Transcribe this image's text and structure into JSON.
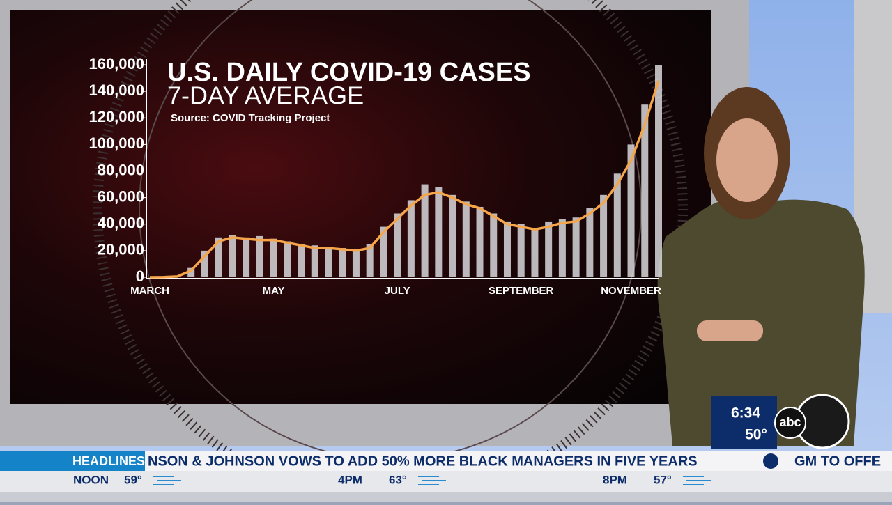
{
  "chart_data": {
    "type": "bar-line",
    "title": "U.S. DAILY COVID-19 CASES",
    "subtitle": "7-DAY AVERAGE",
    "source": "Source: COVID Tracking Project",
    "categories": [
      "MARCH",
      null,
      null,
      null,
      null,
      null,
      null,
      null,
      null,
      "MAY",
      null,
      null,
      null,
      null,
      null,
      null,
      null,
      null,
      "JULY",
      null,
      null,
      null,
      null,
      null,
      null,
      null,
      null,
      "SEPTEMBER",
      null,
      null,
      null,
      null,
      null,
      null,
      null,
      "NOVEMBER",
      null,
      null
    ],
    "series": [
      {
        "type": "bar",
        "color": "#d8d8dc",
        "values": [
          0,
          200,
          900,
          7000,
          20000,
          30000,
          32000,
          30000,
          31000,
          29000,
          27000,
          25000,
          24000,
          23000,
          22000,
          21000,
          25000,
          38000,
          48000,
          58000,
          70000,
          68000,
          62000,
          57000,
          53000,
          48000,
          42000,
          40000,
          37000,
          42000,
          44000,
          45000,
          52000,
          62000,
          78000,
          100000,
          130000,
          160000
        ]
      },
      {
        "type": "line",
        "color": "#f5a54a",
        "values": [
          0,
          100,
          600,
          5000,
          16000,
          27000,
          30000,
          29000,
          28000,
          28000,
          26000,
          24000,
          22000,
          22000,
          21000,
          20000,
          22000,
          34000,
          44000,
          54000,
          62000,
          64000,
          60000,
          55000,
          52000,
          46000,
          40000,
          38000,
          36000,
          38000,
          41000,
          42000,
          48000,
          56000,
          70000,
          88000,
          115000,
          148000
        ]
      }
    ],
    "ylim": [
      0,
      160000
    ],
    "yticks": [
      0,
      {
        "value": 20000,
        "label": "20,000"
      },
      {
        "value": 40000,
        "label": "40,000"
      },
      {
        "value": 60000,
        "label": "60,000"
      },
      {
        "value": 80000,
        "label": "80,000"
      },
      {
        "value": 100000,
        "label": "100,000"
      },
      {
        "value": 120000,
        "label": "120,000"
      },
      {
        "value": 140000,
        "label": "140,000"
      },
      {
        "value": 160000,
        "label": "160,000"
      }
    ]
  },
  "broadcast": {
    "ticker_label": "HEADLINES",
    "ticker_text": "NSON & JOHNSON VOWS TO ADD 50% MORE BLACK MANAGERS IN FIVE YEARS",
    "ticker_next": "GM TO OFFE",
    "weather": [
      {
        "time": "NOON",
        "temp": "59°"
      },
      {
        "time": "4PM",
        "temp": "63°"
      },
      {
        "time": "8PM",
        "temp": "57°"
      }
    ],
    "clock": "6:34",
    "current_temp": "50°",
    "logo": "abc"
  }
}
